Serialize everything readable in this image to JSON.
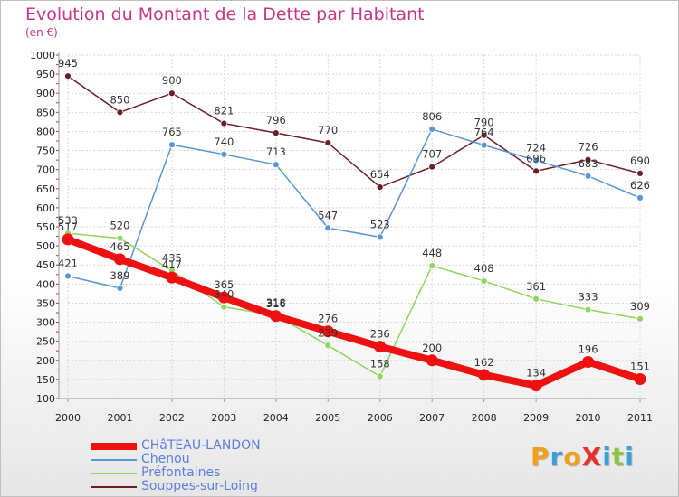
{
  "title": "Evolution du Montant de la Dette par Habitant",
  "subtitle": "(en €)",
  "logo": {
    "text": "ProXiti",
    "letters": [
      {
        "ch": "P",
        "color": "#f0a020"
      },
      {
        "ch": "r",
        "color": "#3aa0d8"
      },
      {
        "ch": "o",
        "color": "#f0a020"
      },
      {
        "ch": "X",
        "color": "#e83030"
      },
      {
        "ch": "i",
        "color": "#3aa0d8"
      },
      {
        "ch": "t",
        "color": "#8cc63f"
      },
      {
        "ch": "i",
        "color": "#3aa0d8"
      }
    ]
  },
  "chart_data": {
    "type": "line",
    "title": "Evolution du Montant de la Dette par Habitant",
    "ylabel": "(en €)",
    "xlabel": "",
    "x": [
      "2000",
      "2001",
      "2002",
      "2003",
      "2004",
      "2005",
      "2006",
      "2007",
      "2008",
      "2009",
      "2010",
      "2011"
    ],
    "ylim": [
      100,
      1000
    ],
    "yticks": [
      100,
      150,
      200,
      250,
      300,
      350,
      400,
      450,
      500,
      550,
      600,
      650,
      700,
      750,
      800,
      850,
      900,
      950,
      1000
    ],
    "grid": true,
    "legend_position": "bottom-left",
    "series": [
      {
        "name": "Souppes-sur-Loing",
        "color": "#6b1f24",
        "width": 1.5,
        "marker": 3.5,
        "values": [
          945,
          850,
          900,
          821,
          796,
          770,
          654,
          707,
          790,
          696,
          726,
          690
        ],
        "labels": [
          "945",
          "850",
          "900",
          "821",
          "796",
          "770",
          "654",
          "707",
          "790",
          "696",
          "726",
          "690"
        ]
      },
      {
        "name": "Chenou",
        "color": "#5a96d2",
        "width": 1.5,
        "marker": 3.5,
        "values": [
          421,
          389,
          765,
          740,
          713,
          547,
          523,
          806,
          764,
          724,
          683,
          626
        ],
        "labels": [
          "421",
          "389",
          "765",
          "740",
          "713",
          "547",
          "523",
          "806",
          "764",
          "724",
          "683",
          "626"
        ]
      },
      {
        "name": "Préfontaines",
        "color": "#8fd45c",
        "width": 1.5,
        "marker": 3.5,
        "values": [
          533,
          520,
          435,
          340,
          318,
          239,
          158,
          448,
          408,
          361,
          333,
          309
        ],
        "labels": [
          "533",
          "520",
          "435",
          "340",
          "318",
          "239",
          "158",
          "448",
          "408",
          "361",
          "333",
          "309"
        ]
      },
      {
        "name": "CHâTEAU-LANDON",
        "color": "#ee1111",
        "width": 8,
        "marker": 6.5,
        "values": [
          517,
          465,
          417,
          365,
          316,
          276,
          236,
          200,
          162,
          134,
          196,
          151
        ],
        "labels": [
          "517",
          "465",
          "417",
          "365",
          "316",
          "276",
          "236",
          "200",
          "162",
          "134",
          "196",
          "151"
        ]
      }
    ],
    "legend_order": [
      "CHâTEAU-LANDON",
      "Chenou",
      "Préfontaines",
      "Souppes-sur-Loing"
    ]
  }
}
